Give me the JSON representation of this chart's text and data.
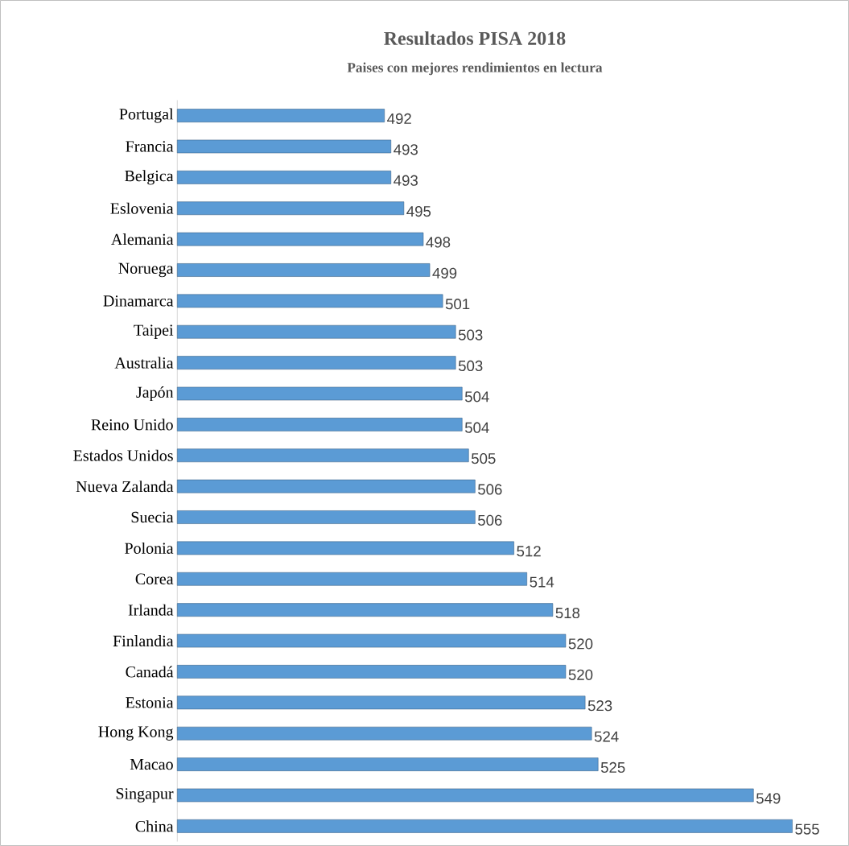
{
  "chart_data": {
    "type": "bar",
    "orientation": "horizontal",
    "title": "Resultados PISA 2018",
    "subtitle": "Paises con mejores rendimientos en lectura",
    "categories": [
      "Portugal",
      "Francia",
      "Belgica",
      "Eslovenia",
      "Alemania",
      "Noruega",
      "Dinamarca",
      "Taipei",
      "Australia",
      "Japón",
      "Reino Unido",
      "Estados Unidos",
      "Nueva Zalanda",
      "Suecia",
      "Polonia",
      "Corea",
      "Irlanda",
      "Finlandia",
      "Canadá",
      "Estonia",
      "Hong Kong",
      "Macao",
      "Singapur",
      "China"
    ],
    "values": [
      492,
      493,
      493,
      495,
      498,
      499,
      501,
      503,
      503,
      504,
      504,
      505,
      506,
      506,
      512,
      514,
      518,
      520,
      520,
      523,
      524,
      525,
      549,
      555
    ],
    "color": "#5b9bd5",
    "xlim": [
      460,
      555
    ],
    "data_labels": true,
    "tick_labels": "y"
  }
}
